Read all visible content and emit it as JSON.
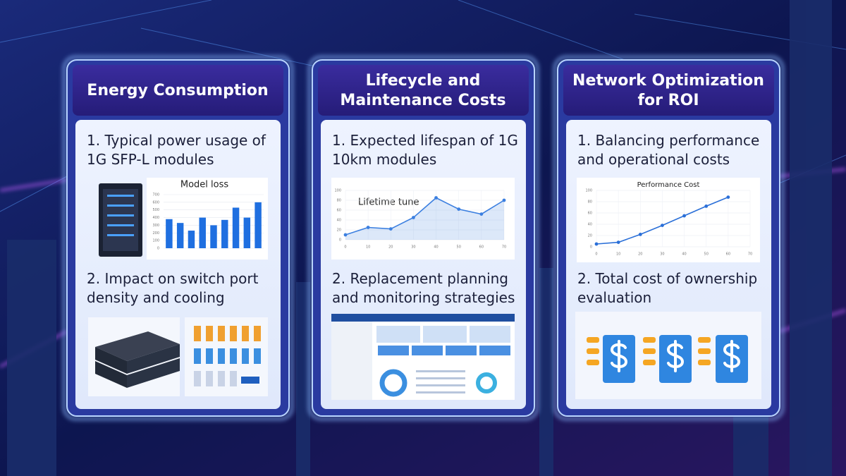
{
  "panels": [
    {
      "title": "Energy Consumption",
      "items": [
        "1. Typical power usage of 1G SFP-L modules",
        "2. Impact on switch port density and cooling"
      ],
      "chart": {
        "type": "bar",
        "title": "Model loss",
        "values": [
          380,
          330,
          230,
          400,
          300,
          370,
          530,
          400,
          600
        ],
        "color": "#1f6fe0",
        "ylim": [
          0,
          700
        ],
        "yticks": [
          0,
          100,
          200,
          300,
          400,
          500,
          600,
          700
        ],
        "grid": true
      }
    },
    {
      "title": "Lifecycle and Maintenance Costs",
      "items": [
        "1. Expected lifespan of 1G 10km modules",
        "2. Replacement planning and monitoring strategies"
      ],
      "chart": {
        "type": "line",
        "title": "Lifetime tune",
        "x": [
          0,
          10,
          20,
          30,
          40,
          50,
          60,
          70
        ],
        "values": [
          10,
          25,
          22,
          45,
          85,
          62,
          52,
          80
        ],
        "color": "#3b7fe0",
        "xlim": [
          0,
          70
        ],
        "ylim": [
          0,
          100
        ],
        "xticks": [
          0,
          10,
          20,
          30,
          40,
          50,
          60,
          70
        ],
        "yticks": [
          0,
          20,
          40,
          60,
          80,
          100
        ],
        "grid": true,
        "area": true
      }
    },
    {
      "title": "Network Optimization for ROI",
      "items": [
        "1. Balancing performance and operational costs",
        "2. Total cost of ownership evaluation"
      ],
      "chart": {
        "type": "line",
        "title": "Performance Cost",
        "x": [
          0,
          10,
          20,
          30,
          40,
          50,
          60
        ],
        "values": [
          5,
          8,
          22,
          38,
          55,
          72,
          88
        ],
        "color": "#2a6fd8",
        "xlim": [
          0,
          70
        ],
        "ylim": [
          0,
          100
        ],
        "xticks": [
          0,
          10,
          20,
          30,
          40,
          50,
          60,
          70
        ],
        "yticks": [
          0,
          20,
          40,
          60,
          80,
          100
        ],
        "grid": true,
        "area": false
      }
    }
  ]
}
